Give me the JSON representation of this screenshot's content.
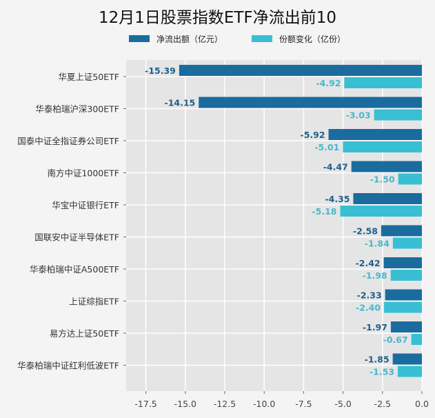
{
  "chart_data": {
    "type": "bar",
    "orientation": "horizontal",
    "title": "12月1日股票指数ETF净流出前10",
    "categories": [
      "华夏上证50ETF",
      "华泰柏瑞沪深300ETF",
      "国泰中证全指证券公司ETF",
      "南方中证1000ETF",
      "华宝中证银行ETF",
      "国联安中证半导体ETF",
      "华泰柏瑞中证A500ETF",
      "上证综指ETF",
      "易方达上证50ETF",
      "华泰柏瑞中证红利低波ETF"
    ],
    "series": [
      {
        "name": "净流出额（亿元）",
        "color": "#1a6c9e",
        "label_color": "#1d5f8a",
        "values": [
          -15.39,
          -14.15,
          -5.92,
          -4.47,
          -4.35,
          -2.58,
          -2.42,
          -2.33,
          -1.97,
          -1.85
        ],
        "labels": [
          "-15.39",
          "-14.15",
          "-5.92",
          "-4.47",
          "-4.35",
          "-2.58",
          "-2.42",
          "-2.33",
          "-1.97",
          "-1.85"
        ]
      },
      {
        "name": "份额变化（亿份）",
        "color": "#38bfd3",
        "label_color": "#45b9cc",
        "values": [
          -4.92,
          -3.03,
          -5.01,
          -1.5,
          -5.18,
          -1.84,
          -1.98,
          -2.4,
          -0.67,
          -1.53
        ],
        "labels": [
          "-4.92",
          "-3.03",
          "-5.01",
          "-1.50",
          "-5.18",
          "-1.84",
          "-1.98",
          "-2.40",
          "-0.67",
          "-1.53"
        ]
      }
    ],
    "xlim": [
      -18.75,
      0
    ],
    "xticks": [
      "-17.5",
      "-15.0",
      "-12.5",
      "-10.0",
      "-7.5",
      "-5.0",
      "-2.5",
      "0.0"
    ],
    "grid": true,
    "legend": "top"
  }
}
